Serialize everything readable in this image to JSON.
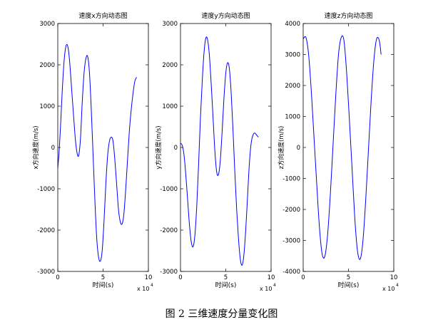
{
  "caption": "图 2  三维速度分量变化图",
  "series_color": "#0000ff",
  "chart_data": [
    {
      "type": "line",
      "title": "速度x方向动态图",
      "xlabel": "时间(s)",
      "ylabel": "x方向速度(m/s)",
      "x_multiplier": "x 10",
      "x_multiplier_exp": "4",
      "xlim": [
        0,
        10
      ],
      "ylim": [
        -3000,
        3000
      ],
      "xticks": [
        0,
        5,
        10
      ],
      "yticks": [
        -3000,
        -2000,
        -1000,
        0,
        1000,
        2000,
        3000
      ],
      "x": [
        0,
        0.15,
        0.3,
        0.5,
        0.7,
        0.9,
        1.1,
        1.3,
        1.6,
        1.9,
        2.1,
        2.3,
        2.5,
        2.7,
        2.9,
        3.1,
        3.3,
        3.5,
        3.7,
        3.9,
        4.1,
        4.3,
        4.5,
        4.7,
        4.9,
        5.1,
        5.3,
        5.5,
        5.7,
        5.9,
        6.1,
        6.3,
        6.5,
        6.7,
        6.9,
        7.1,
        7.3,
        7.5,
        7.7,
        7.9,
        8.1,
        8.3,
        8.5,
        8.7
      ],
      "y": [
        -500,
        -100,
        500,
        1400,
        2100,
        2450,
        2450,
        2100,
        1200,
        300,
        -100,
        -200,
        200,
        1100,
        1800,
        2150,
        2200,
        1800,
        900,
        -200,
        -1300,
        -2200,
        -2650,
        -2750,
        -2500,
        -1800,
        -900,
        -200,
        150,
        250,
        150,
        -300,
        -900,
        -1500,
        -1800,
        -1850,
        -1600,
        -1000,
        -300,
        400,
        900,
        1300,
        1600,
        1700
      ]
    },
    {
      "type": "line",
      "title": "速度y方向动态图",
      "xlabel": "时间(s)",
      "ylabel": "y方向速度(m/s)",
      "x_multiplier": "x 10",
      "x_multiplier_exp": "4",
      "xlim": [
        0,
        10
      ],
      "ylim": [
        -3000,
        3000
      ],
      "xticks": [
        0,
        5,
        10
      ],
      "yticks": [
        -3000,
        -2000,
        -1000,
        0,
        1000,
        2000,
        3000
      ],
      "x": [
        0,
        0.2,
        0.4,
        0.6,
        0.8,
        1.0,
        1.2,
        1.4,
        1.6,
        1.8,
        2.0,
        2.2,
        2.4,
        2.6,
        2.8,
        3.0,
        3.2,
        3.4,
        3.6,
        3.8,
        4.0,
        4.2,
        4.4,
        4.6,
        4.8,
        5.0,
        5.2,
        5.4,
        5.6,
        5.8,
        6.0,
        6.2,
        6.4,
        6.6,
        6.8,
        7.0,
        7.2,
        7.4,
        7.6,
        7.8,
        8.0,
        8.2,
        8.4,
        8.6
      ],
      "y": [
        100,
        50,
        -200,
        -700,
        -1300,
        -1900,
        -2300,
        -2400,
        -2100,
        -1400,
        -400,
        700,
        1600,
        2300,
        2650,
        2600,
        2200,
        1500,
        700,
        -100,
        -600,
        -650,
        -300,
        400,
        1200,
        1800,
        2050,
        1900,
        1300,
        400,
        -600,
        -1500,
        -2200,
        -2700,
        -2850,
        -2600,
        -2000,
        -1200,
        -400,
        100,
        300,
        350,
        300,
        250
      ]
    },
    {
      "type": "line",
      "title": "速度z方向动态图",
      "xlabel": "时间(s)",
      "ylabel": "z方向速度(m/s)",
      "x_multiplier": "x 10",
      "x_multiplier_exp": "4",
      "xlim": [
        0,
        10
      ],
      "ylim": [
        -4000,
        4000
      ],
      "xticks": [
        0,
        5,
        10
      ],
      "yticks": [
        -4000,
        -3000,
        -2000,
        -1000,
        0,
        1000,
        2000,
        3000,
        4000
      ],
      "x": [
        0,
        0.3,
        0.6,
        0.9,
        1.2,
        1.5,
        1.8,
        2.1,
        2.4,
        2.7,
        3.0,
        3.3,
        3.6,
        3.9,
        4.2,
        4.5,
        4.8,
        5.1,
        5.4,
        5.7,
        6.0,
        6.3,
        6.6,
        6.9,
        7.2,
        7.5,
        7.8,
        8.1,
        8.4,
        8.6
      ],
      "y": [
        3500,
        3550,
        3000,
        1800,
        300,
        -1200,
        -2600,
        -3450,
        -3500,
        -2800,
        -1500,
        100,
        1700,
        3000,
        3550,
        3450,
        2400,
        900,
        -700,
        -2300,
        -3350,
        -3600,
        -3000,
        -1700,
        -100,
        1500,
        2800,
        3500,
        3450,
        3000
      ]
    }
  ]
}
